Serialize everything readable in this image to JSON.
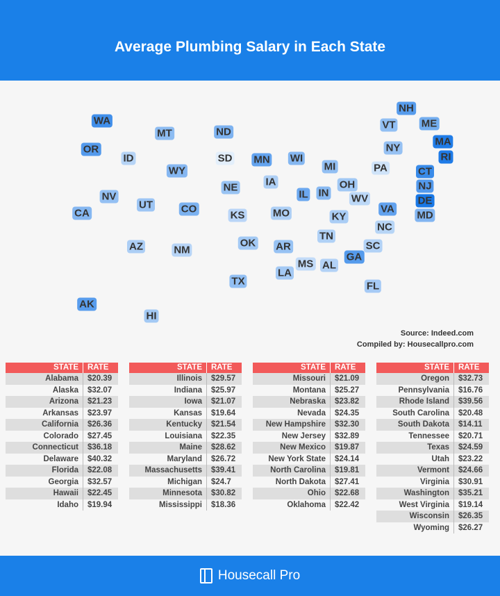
{
  "title": "Average Plumbing Salary in Each State",
  "source": "Source: Indeed.com",
  "compiled": "Compiled by: Housecallpro.com",
  "footer_brand": "Housecall Pro",
  "colors": {
    "header": "#1a80e8",
    "table_header": "#f25a5a",
    "scale_low": "#e4effb",
    "scale_high": "#1877e6"
  },
  "table_headers": {
    "state": "STATE",
    "rate": "RATE"
  },
  "tables": [
    [
      [
        "Alabama",
        "$20.39"
      ],
      [
        "Alaska",
        "$32.07"
      ],
      [
        "Arizona",
        "$21.23"
      ],
      [
        "Arkansas",
        "$23.97"
      ],
      [
        "California",
        "$26.36"
      ],
      [
        "Colorado",
        "$27.45"
      ],
      [
        "Connecticut",
        "$36.18"
      ],
      [
        "Delaware",
        "$40.32"
      ],
      [
        "Florida",
        "$22.08"
      ],
      [
        "Georgia",
        "$32.57"
      ],
      [
        "Hawaii",
        "$22.45"
      ],
      [
        "Idaho",
        "$19.94"
      ]
    ],
    [
      [
        "Illinois",
        "$29.57"
      ],
      [
        "Indiana",
        "$25.97"
      ],
      [
        "Iowa",
        "$21.07"
      ],
      [
        "Kansas",
        "$19.64"
      ],
      [
        "Kentucky",
        "$21.54"
      ],
      [
        "Louisiana",
        "$22.35"
      ],
      [
        "Maine",
        "$28.62"
      ],
      [
        "Maryland",
        "$26.72"
      ],
      [
        "Massachusetts",
        "$39.41"
      ],
      [
        "Michigan",
        "$24.7"
      ],
      [
        "Minnesota",
        "$30.82"
      ],
      [
        "Mississippi",
        "$18.36"
      ]
    ],
    [
      [
        "Missouri",
        "$21.09"
      ],
      [
        "Montana",
        "$25.27"
      ],
      [
        "Nebraska",
        "$23.82"
      ],
      [
        "Nevada",
        "$24.35"
      ],
      [
        "New Hampshire",
        "$32.30"
      ],
      [
        "New Jersey",
        "$32.89"
      ],
      [
        "New Mexico",
        "$19.87"
      ],
      [
        "New York State",
        "$24.14"
      ],
      [
        "North Carolina",
        "$19.81"
      ],
      [
        "North Dakota",
        "$27.41"
      ],
      [
        "Ohio",
        "$22.68"
      ],
      [
        "Oklahoma",
        "$22.42"
      ]
    ],
    [
      [
        "Oregon",
        "$32.73"
      ],
      [
        "Pennsylvania",
        "$16.76"
      ],
      [
        "Rhode Island",
        "$39.56"
      ],
      [
        "South Carolina",
        "$20.48"
      ],
      [
        "South Dakota",
        "$14.11"
      ],
      [
        "Tennessee",
        "$20.71"
      ],
      [
        "Texas",
        "$24.59"
      ],
      [
        "Utah",
        "$23.22"
      ],
      [
        "Vermont",
        "$24.66"
      ],
      [
        "Virginia",
        "$30.91"
      ],
      [
        "Washington",
        "$35.21"
      ],
      [
        "West Virginia",
        "$19.14"
      ],
      [
        "Wisconsin",
        "$26.35"
      ],
      [
        "Wyoming",
        "$26.27"
      ]
    ]
  ],
  "map_states": {
    "WA": 35.21,
    "OR": 32.73,
    "CA": 26.36,
    "NV": 24.35,
    "ID": 19.94,
    "MT": 25.27,
    "WY": 26.27,
    "UT": 23.22,
    "CO": 27.45,
    "AZ": 21.23,
    "NM": 19.87,
    "ND": 27.41,
    "SD": 14.11,
    "NE": 23.82,
    "KS": 19.64,
    "OK": 22.42,
    "TX": 24.59,
    "MN": 30.82,
    "IA": 21.07,
    "MO": 21.09,
    "AR": 23.97,
    "LA": 22.35,
    "WI": 26.35,
    "IL": 29.57,
    "MI": 24.7,
    "IN": 25.97,
    "OH": 22.68,
    "KY": 21.54,
    "TN": 20.71,
    "MS": 18.36,
    "AL": 20.39,
    "GA": 32.57,
    "FL": 22.08,
    "SC": 20.48,
    "NC": 19.81,
    "VA": 30.91,
    "WV": 19.14,
    "PA": 16.76,
    "NY": 24.14,
    "VT": 24.66,
    "NH": 32.3,
    "ME": 28.62,
    "MA": 39.41,
    "RI": 39.56,
    "CT": 36.18,
    "NJ": 32.89,
    "DE": 40.32,
    "MD": 26.72,
    "AK": 32.07,
    "HI": 22.45
  }
}
